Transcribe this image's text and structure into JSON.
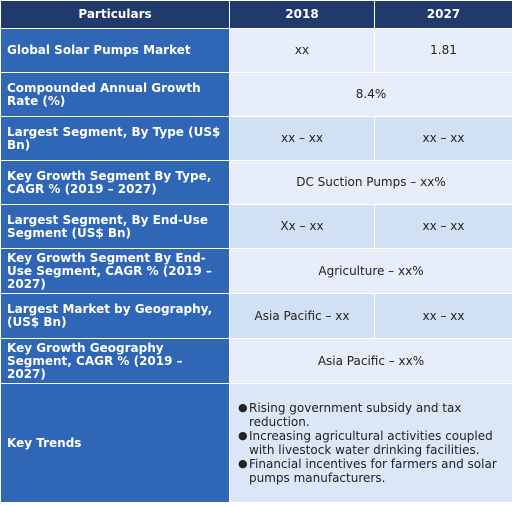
{
  "table": {
    "headers": [
      "Particulars",
      "2018",
      "2027"
    ],
    "rows": [
      {
        "label": "Global Solar Pumps Market",
        "v2018": "xx",
        "v2027": "1.81"
      },
      {
        "label": "Compounded Annual Growth Rate (%)",
        "merged": "8.4%"
      },
      {
        "label": "Largest Segment, By Type (US$ Bn)",
        "v2018": "xx – xx",
        "v2027": "xx – xx"
      },
      {
        "label": "Key Growth Segment By Type, CAGR % (2019 – 2027)",
        "merged": "DC Suction Pumps – xx%"
      },
      {
        "label": "Largest Segment, By End-Use Segment (US$ Bn)",
        "v2018": "Xx – xx",
        "v2027": "xx – xx"
      },
      {
        "label": "Key Growth Segment By End-Use Segment, CAGR % (2019 – 2027)",
        "merged": "Agriculture  – xx%"
      },
      {
        "label": "Largest Market by Geography, (US$ Bn)",
        "v2018": "Asia Pacific – xx",
        "v2027": "xx – xx"
      },
      {
        "label": "Key Growth Geography Segment, CAGR % (2019 – 2027)",
        "merged": "Asia Pacific – xx%"
      },
      {
        "label": "Key Trends",
        "trends": [
          "Rising government subsidy and tax reduction.",
          "Increasing agricultural activities coupled with livestock water drinking facilities.",
          "Financial incentives for farmers and solar pumps manufacturers."
        ]
      }
    ]
  }
}
